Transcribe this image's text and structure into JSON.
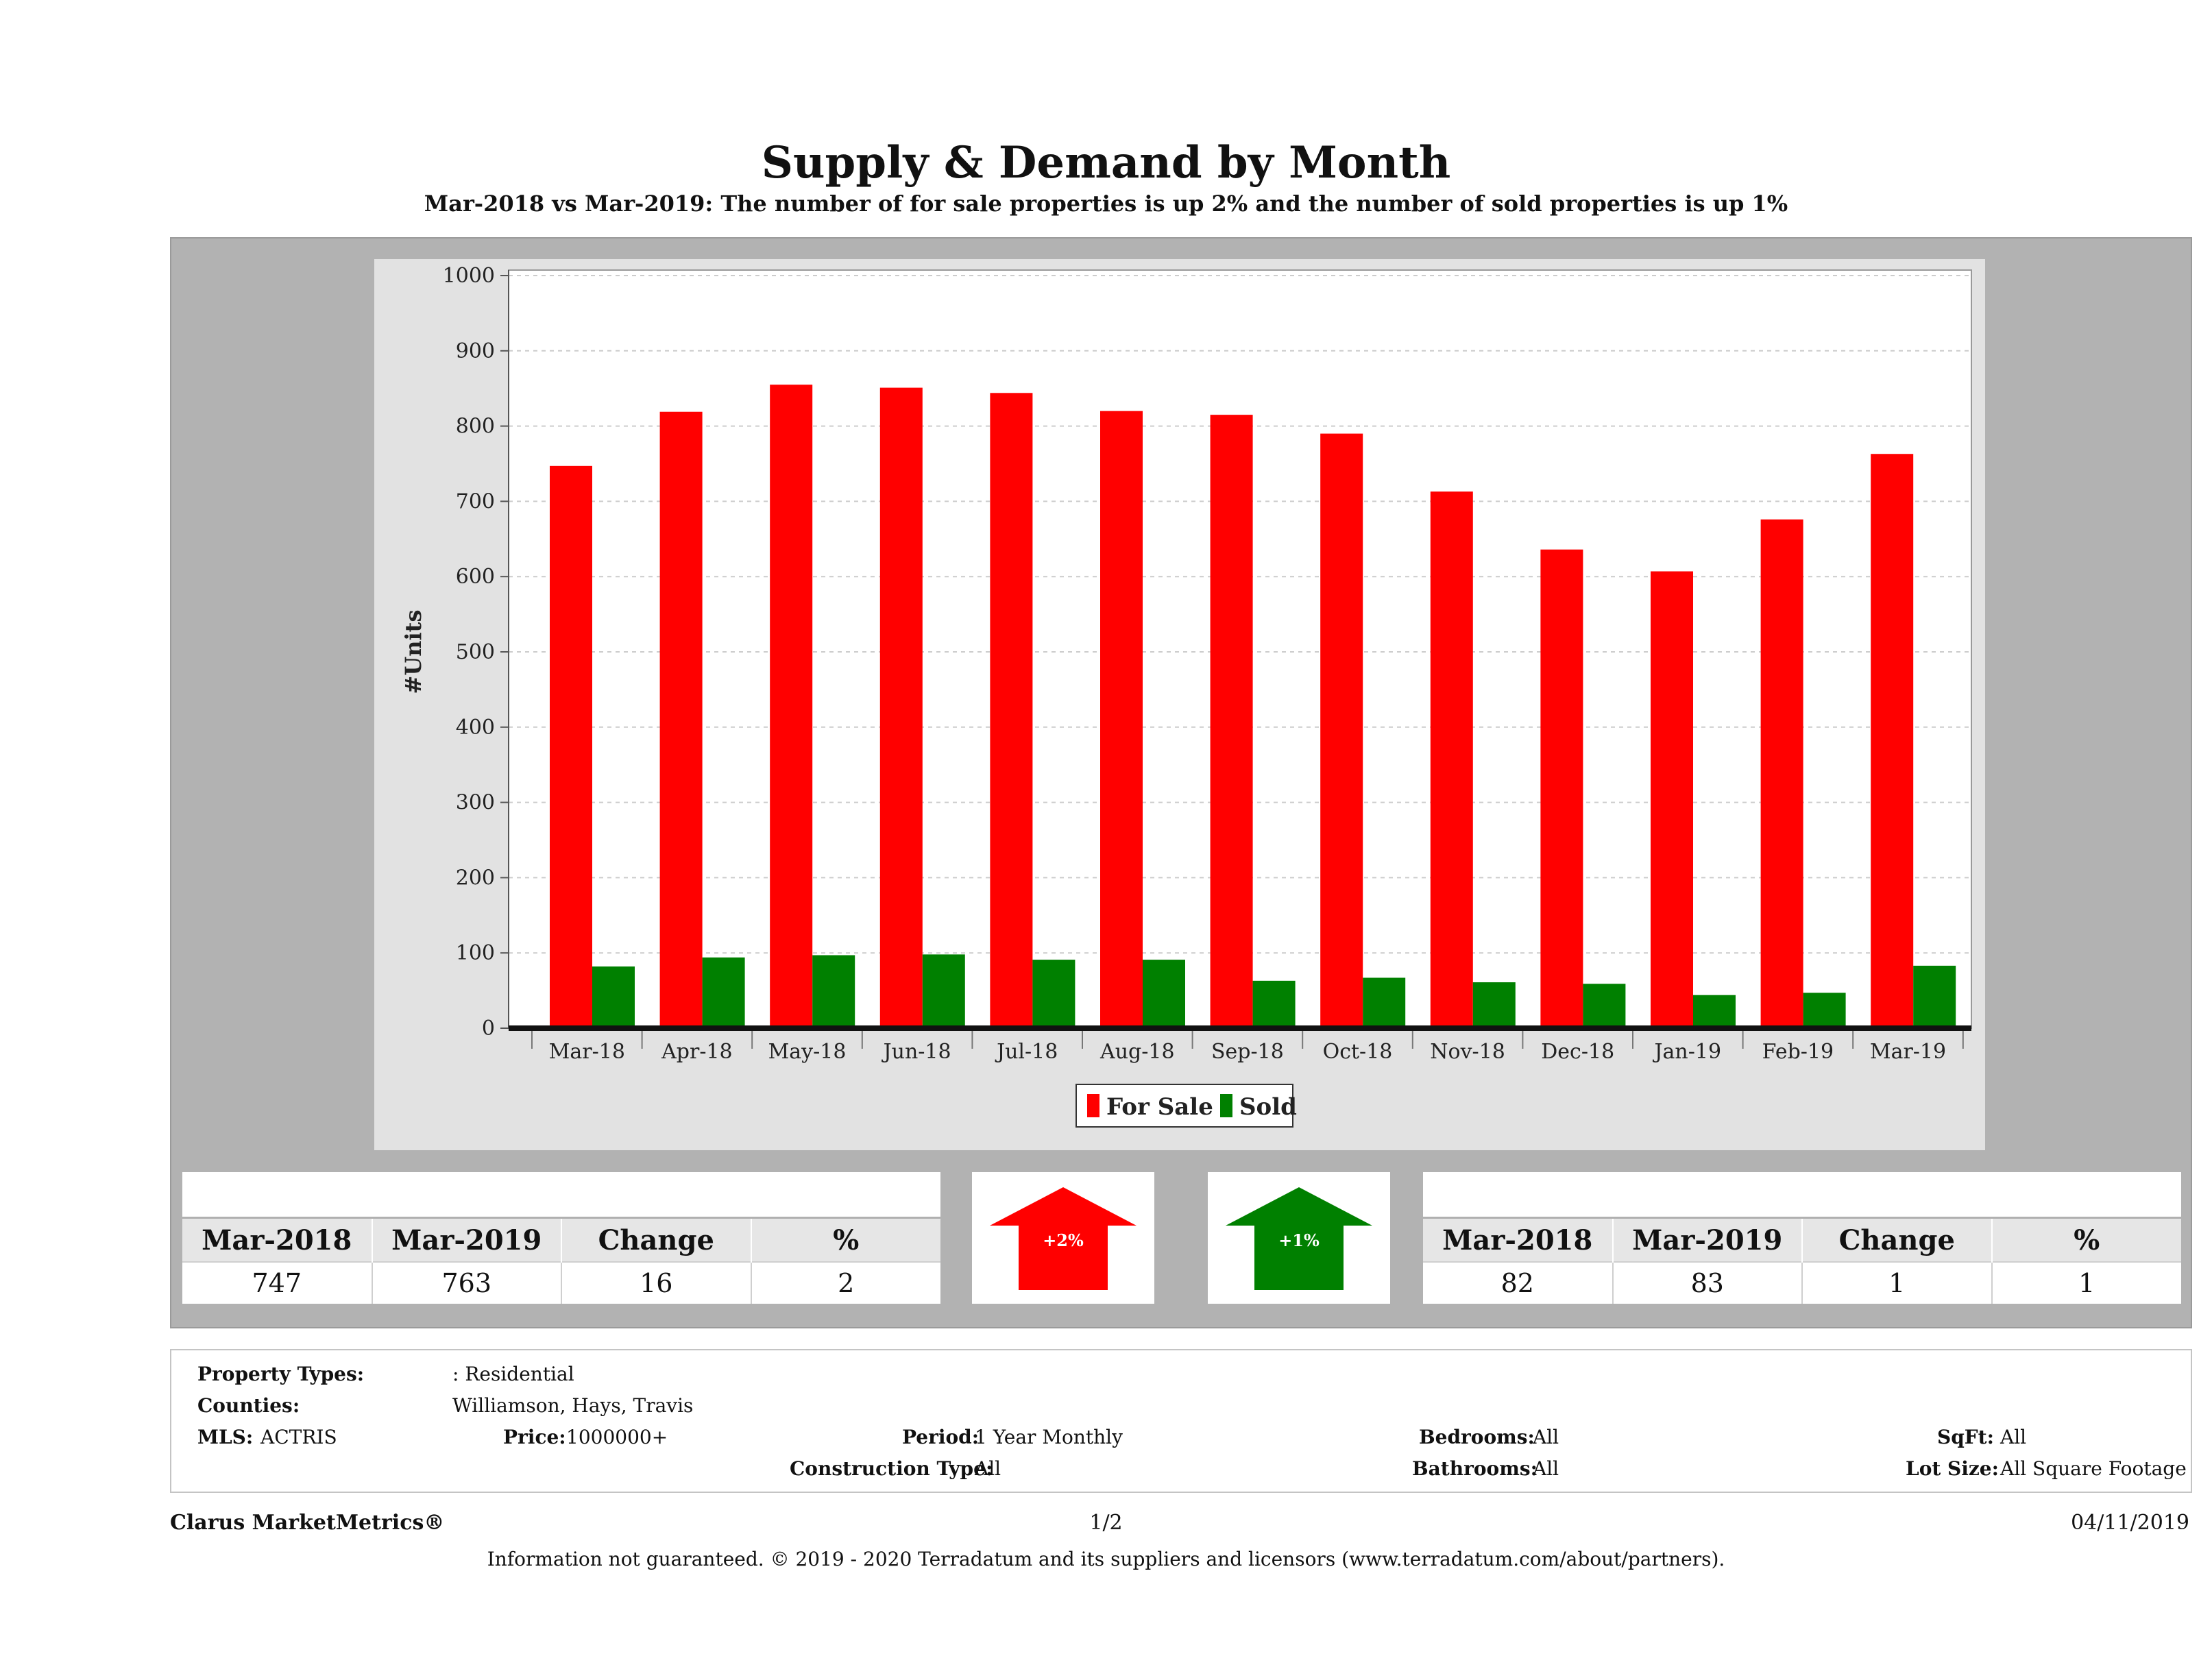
{
  "title": "Supply & Demand by Month",
  "subtitle": "Mar-2018 vs Mar-2019: The number of for sale properties is up 2% and the number of sold properties is up 1%",
  "colors": {
    "for_sale": "#ff0000",
    "sold": "#008000",
    "panel": "#b2b2b2",
    "chart_bg": "#e2e2e2"
  },
  "chart_data": {
    "type": "bar",
    "categories": [
      "Mar-18",
      "Apr-18",
      "May-18",
      "Jun-18",
      "Jul-18",
      "Aug-18",
      "Sep-18",
      "Oct-18",
      "Nov-18",
      "Dec-18",
      "Jan-19",
      "Feb-19",
      "Mar-19"
    ],
    "series": [
      {
        "name": "For Sale",
        "values": [
          747,
          819,
          855,
          851,
          844,
          820,
          815,
          790,
          713,
          636,
          607,
          676,
          763
        ]
      },
      {
        "name": "Sold",
        "values": [
          82,
          94,
          97,
          98,
          91,
          91,
          63,
          67,
          61,
          59,
          44,
          47,
          83
        ]
      }
    ],
    "ylabel": "#Units",
    "xlabel": "",
    "ylim": [
      0,
      1000
    ],
    "yticks": [
      0,
      100,
      200,
      300,
      400,
      500,
      600,
      700,
      800,
      900,
      1000
    ],
    "grid": true,
    "legend": "bottom-center"
  },
  "for_sale_stats": {
    "headers": [
      "Mar-2018",
      "Mar-2019",
      "Change",
      "%"
    ],
    "values": [
      "747",
      "763",
      "16",
      "2"
    ],
    "arrow_label": "+2%",
    "direction": "up"
  },
  "sold_stats": {
    "headers": [
      "Mar-2018",
      "Mar-2019",
      "Change",
      "%"
    ],
    "values": [
      "82",
      "83",
      "1",
      "1"
    ],
    "arrow_label": "+1%",
    "direction": "up"
  },
  "details": {
    "property_types_label": "Property Types:",
    "property_types_value": ": Residential",
    "counties_label": "Counties:",
    "counties_value": "Williamson, Hays, Travis",
    "mls_label": "MLS:",
    "mls_value": "ACTRIS",
    "price_label": "Price:",
    "price_value": "1000000+",
    "period_label": "Period:",
    "period_value": "1 Year Monthly",
    "construction_label": "Construction Type:",
    "construction_value": "All",
    "bedrooms_label": "Bedrooms:",
    "bedrooms_value": "All",
    "bathrooms_label": "Bathrooms:",
    "bathrooms_value": "All",
    "sqft_label": "SqFt:",
    "sqft_value": "All",
    "lotsize_label": "Lot Size:",
    "lotsize_value": "All Square Footage"
  },
  "footer": {
    "brand": "Clarus MarketMetrics®",
    "page": "1/2",
    "date": "04/11/2019",
    "disclaimer": "Information not guaranteed. © 2019 - 2020 Terradatum and its suppliers and licensors (www.terradatum.com/about/partners)."
  }
}
